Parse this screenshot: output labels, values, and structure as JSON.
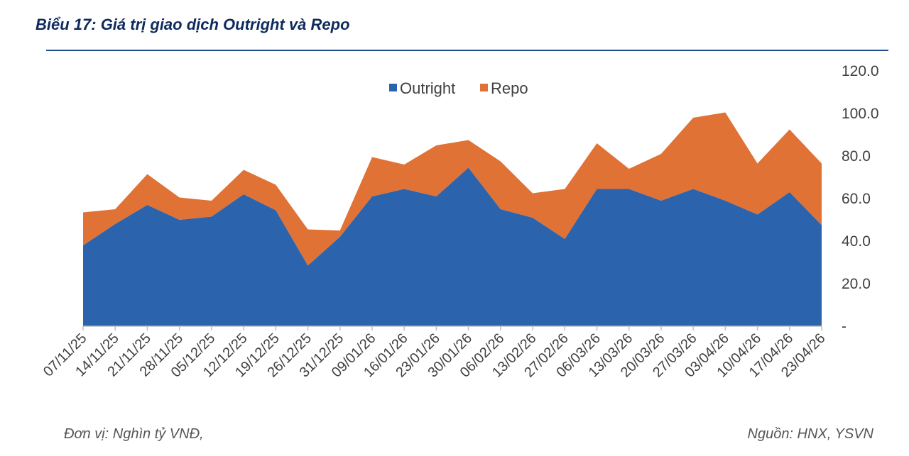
{
  "header": {
    "title": "Biểu 17: Giá trị giao dịch Outright và Repo"
  },
  "footer": {
    "unit": "Đơn vị: Nghìn tỷ VNĐ,",
    "source": "Nguồn: HNX, YSVN"
  },
  "chart_data": {
    "type": "area",
    "stacked": true,
    "title": "Biểu 17: Giá trị giao dịch Outright và Repo",
    "xlabel": "",
    "ylabel": "",
    "ylim": [
      0,
      120
    ],
    "yticks": [
      "-",
      "20.0",
      "40.0",
      "60.0",
      "80.0",
      "100.0",
      "120.0"
    ],
    "ytick_values": [
      0,
      20,
      40,
      60,
      80,
      100,
      120
    ],
    "legend_position": "top-center",
    "categories": [
      "07/11/25",
      "14/11/25",
      "21/11/25",
      "28/11/25",
      "05/12/25",
      "12/12/25",
      "19/12/25",
      "26/12/25",
      "31/12/25",
      "09/01/26",
      "16/01/26",
      "23/01/26",
      "30/01/26",
      "06/02/26",
      "13/02/26",
      "27/02/26",
      "06/03/26",
      "13/03/26",
      "20/03/26",
      "27/03/26",
      "03/04/26",
      "10/04/26",
      "17/04/26",
      "23/04/26"
    ],
    "series": [
      {
        "name": "Outright",
        "color": "#2b64ac",
        "values": [
          38,
          48,
          57,
          50,
          51.5,
          62,
          54.5,
          28.5,
          42,
          61,
          64.5,
          61,
          74.5,
          55,
          51,
          41,
          64.5,
          64.5,
          59,
          64.5,
          59,
          52.5,
          63,
          47.5
        ]
      },
      {
        "name": "Repo",
        "color": "#e07236",
        "values": [
          15.5,
          7,
          14.5,
          10.5,
          7.5,
          11.5,
          12,
          17,
          3,
          18.5,
          11.5,
          24,
          13,
          22.5,
          11.5,
          23.5,
          21.5,
          9.5,
          22,
          33.5,
          41.5,
          24,
          29.5,
          29
        ]
      }
    ]
  }
}
